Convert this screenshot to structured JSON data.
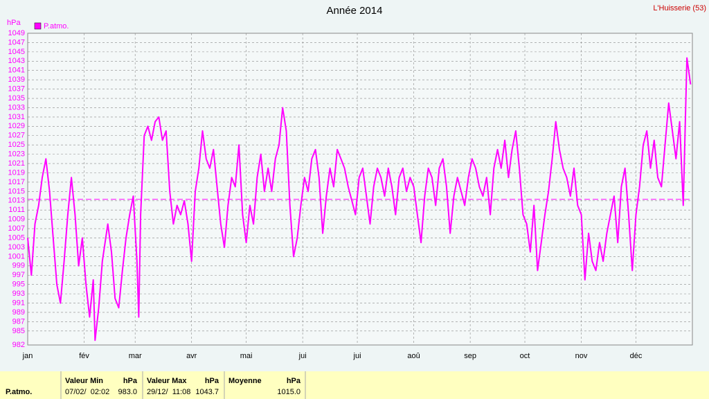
{
  "chart_data": {
    "type": "line",
    "title": "Année 2014",
    "station": "L'Huisserie (53)",
    "y_label": "hPa",
    "series": [
      {
        "name": "P.atmo.",
        "color": "#ff00ff",
        "x": [
          0,
          2,
          4,
          6,
          8,
          10,
          12,
          14,
          16,
          18,
          20,
          22,
          24,
          26,
          28,
          30,
          32,
          34,
          36,
          37,
          39,
          41,
          44,
          46,
          48,
          50,
          52,
          54,
          56,
          58,
          60,
          61,
          62,
          64,
          66,
          68,
          70,
          72,
          74,
          76,
          78,
          80,
          82,
          84,
          86,
          88,
          90,
          92,
          94,
          96,
          98,
          100,
          102,
          104,
          106,
          108,
          110,
          112,
          114,
          116,
          118,
          120,
          122,
          124,
          126,
          128,
          130,
          132,
          134,
          136,
          138,
          140,
          142,
          144,
          146,
          148,
          150,
          152,
          154,
          156,
          158,
          160,
          162,
          164,
          166,
          168,
          170,
          172,
          174,
          176,
          178,
          180,
          182,
          184,
          186,
          188,
          190,
          192,
          194,
          196,
          198,
          200,
          202,
          204,
          206,
          208,
          210,
          212,
          214,
          216,
          218,
          220,
          222,
          224,
          226,
          228,
          230,
          232,
          234,
          236,
          238,
          240,
          242,
          244,
          246,
          248,
          250,
          252,
          254,
          256,
          258,
          260,
          262,
          264,
          266,
          268,
          270,
          272,
          274,
          276,
          278,
          280,
          282,
          284,
          286,
          288,
          290,
          292,
          294,
          296,
          298,
          300,
          302,
          304,
          306,
          308,
          310,
          312,
          314,
          316,
          318,
          320,
          322,
          324,
          326,
          328,
          330,
          332,
          334,
          336,
          338,
          340,
          342,
          344,
          346,
          348,
          350,
          352,
          354,
          356,
          358,
          360,
          362,
          364
        ],
        "values": [
          1005,
          997,
          1008,
          1012,
          1018,
          1022,
          1015,
          1005,
          995,
          991,
          1000,
          1010,
          1018,
          1010,
          999,
          1005,
          995,
          988,
          996,
          983,
          990,
          1000,
          1008,
          1002,
          992,
          990,
          998,
          1005,
          1010,
          1014,
          1000,
          988,
          1010,
          1027,
          1029,
          1026,
          1030,
          1031,
          1026,
          1028,
          1015,
          1008,
          1012,
          1010,
          1013,
          1008,
          1000,
          1015,
          1020,
          1028,
          1022,
          1020,
          1024,
          1016,
          1008,
          1003,
          1012,
          1018,
          1016,
          1025,
          1010,
          1004,
          1012,
          1008,
          1018,
          1023,
          1015,
          1020,
          1015,
          1022,
          1025,
          1033,
          1028,
          1012,
          1001,
          1005,
          1012,
          1018,
          1015,
          1022,
          1024,
          1018,
          1006,
          1014,
          1020,
          1016,
          1024,
          1022,
          1020,
          1016,
          1013,
          1010,
          1018,
          1020,
          1014,
          1008,
          1016,
          1020,
          1018,
          1014,
          1020,
          1016,
          1010,
          1018,
          1020,
          1015,
          1018,
          1016,
          1010,
          1004,
          1014,
          1020,
          1018,
          1012,
          1020,
          1022,
          1016,
          1006,
          1014,
          1018,
          1015,
          1012,
          1018,
          1022,
          1020,
          1016,
          1014,
          1018,
          1010,
          1020,
          1024,
          1020,
          1026,
          1018,
          1024,
          1028,
          1020,
          1010,
          1008,
          1002,
          1012,
          998,
          1004,
          1010,
          1015,
          1022,
          1030,
          1024,
          1020,
          1018,
          1014,
          1020,
          1012,
          1010,
          996,
          1006,
          1000,
          998,
          1004,
          1000,
          1006,
          1010,
          1014,
          1004,
          1016,
          1020,
          1010,
          998,
          1010,
          1016,
          1025,
          1028,
          1020,
          1026,
          1018,
          1016,
          1025,
          1034,
          1028,
          1022,
          1030,
          1012,
          1043.7,
          1038
        ]
      }
    ],
    "reference_line": 1013.3,
    "xlim": [
      0,
      365
    ],
    "xticks": [
      {
        "value": 0,
        "label": "jan"
      },
      {
        "value": 31,
        "label": "fév"
      },
      {
        "value": 59,
        "label": "mar"
      },
      {
        "value": 90,
        "label": "avr"
      },
      {
        "value": 120,
        "label": "mai"
      },
      {
        "value": 151,
        "label": "jui"
      },
      {
        "value": 181,
        "label": "jui"
      },
      {
        "value": 212,
        "label": "aoû"
      },
      {
        "value": 243,
        "label": "sep"
      },
      {
        "value": 273,
        "label": "oct"
      },
      {
        "value": 304,
        "label": "nov"
      },
      {
        "value": 334,
        "label": "déc"
      }
    ],
    "ylim": [
      982,
      1049
    ],
    "yticks": [
      982,
      985,
      987,
      989,
      991,
      993,
      995,
      997,
      999,
      1001,
      1003,
      1005,
      1007,
      1009,
      1011,
      1013,
      1015,
      1017,
      1019,
      1021,
      1023,
      1025,
      1027,
      1029,
      1031,
      1033,
      1035,
      1037,
      1039,
      1041,
      1043,
      1045,
      1047,
      1049
    ],
    "grid": true
  },
  "stats": {
    "row_label": "P.atmo.",
    "min": {
      "header": "Valeur Min",
      "unit": "hPa",
      "date": "07/02/  02:02",
      "value": "983.0"
    },
    "max": {
      "header": "Valeur Max",
      "unit": "hPa",
      "date": "29/12/  11:08",
      "value": "1043.7"
    },
    "mean": {
      "header": "Moyenne",
      "unit": "hPa",
      "value": "1015.0"
    }
  }
}
